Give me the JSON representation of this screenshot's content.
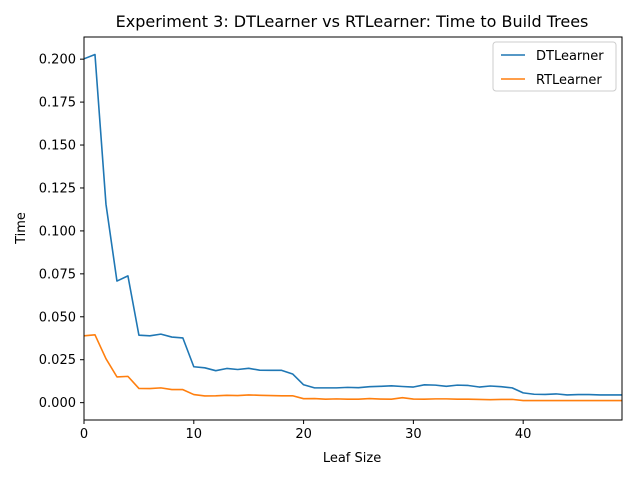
{
  "chart_data": {
    "type": "line",
    "title": "Experiment 3: DTLearner vs RTLearner: Time to Build Trees",
    "xlabel": "Leaf Size",
    "ylabel": "Time",
    "xlim": [
      0,
      49
    ],
    "ylim": [
      -0.0101,
      0.2129
    ],
    "xticks": [
      0,
      10,
      20,
      30,
      40
    ],
    "yticks": [
      0.0,
      0.025,
      0.05,
      0.075,
      0.1,
      0.125,
      0.15,
      0.175,
      0.2
    ],
    "ytick_labels": [
      "0.000",
      "0.025",
      "0.050",
      "0.075",
      "0.100",
      "0.125",
      "0.150",
      "0.175",
      "0.200"
    ],
    "grid": false,
    "legend_position": "upper right",
    "x": [
      0,
      1,
      2,
      3,
      4,
      5,
      6,
      7,
      8,
      9,
      10,
      11,
      12,
      13,
      14,
      15,
      16,
      17,
      18,
      19,
      20,
      21,
      22,
      23,
      24,
      25,
      26,
      27,
      28,
      29,
      30,
      31,
      32,
      33,
      34,
      35,
      36,
      37,
      38,
      39,
      40,
      41,
      42,
      43,
      44,
      45,
      46,
      47,
      48,
      49
    ],
    "series": [
      {
        "name": "DTLearner",
        "color": "#1f77b4",
        "values": [
          0.2002,
          0.2027,
          0.1156,
          0.0708,
          0.0738,
          0.0393,
          0.0389,
          0.0399,
          0.0382,
          0.0377,
          0.0209,
          0.0203,
          0.0186,
          0.0199,
          0.0193,
          0.02,
          0.0189,
          0.0188,
          0.0188,
          0.0167,
          0.0104,
          0.0086,
          0.0086,
          0.0086,
          0.0089,
          0.0087,
          0.0093,
          0.0095,
          0.0098,
          0.0094,
          0.0091,
          0.0104,
          0.0102,
          0.0095,
          0.0102,
          0.01,
          0.0091,
          0.0097,
          0.0093,
          0.0086,
          0.0057,
          0.0049,
          0.0048,
          0.0051,
          0.0045,
          0.0047,
          0.0047,
          0.0045,
          0.0045,
          0.0045
        ]
      },
      {
        "name": "RTLearner",
        "color": "#ff7f0e",
        "values": [
          0.0389,
          0.0395,
          0.0256,
          0.015,
          0.0153,
          0.0083,
          0.0082,
          0.0086,
          0.0076,
          0.0076,
          0.0047,
          0.0039,
          0.004,
          0.0043,
          0.0041,
          0.0045,
          0.0043,
          0.0041,
          0.004,
          0.004,
          0.0023,
          0.0024,
          0.002,
          0.0022,
          0.002,
          0.002,
          0.0024,
          0.0021,
          0.002,
          0.0029,
          0.0021,
          0.002,
          0.0022,
          0.0022,
          0.002,
          0.002,
          0.0019,
          0.0017,
          0.0019,
          0.0019,
          0.0012,
          0.0012,
          0.0012,
          0.0012,
          0.0012,
          0.0012,
          0.0012,
          0.0012,
          0.0012,
          0.0012
        ]
      }
    ]
  }
}
